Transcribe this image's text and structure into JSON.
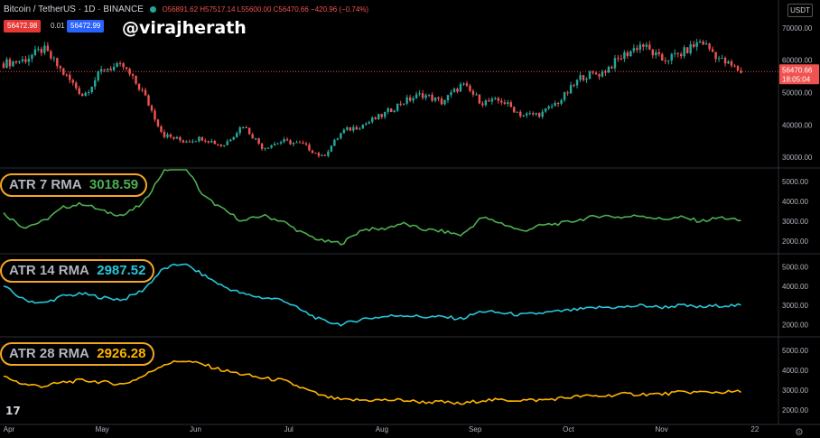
{
  "header": {
    "symbol": "Bitcoin / TetherUS · 1D · BINANCE",
    "ohlc": "O56891.62 H57517.14 L55600.00 C56470.66 −420.96 (−0.74%)",
    "sell_price": "56472.98",
    "spread": "0.01",
    "buy_price": "56472.99",
    "currency_button": "USDT"
  },
  "watermark": "@virajherath",
  "price_label": {
    "value": "56470.66",
    "countdown": "18:05:04"
  },
  "indicators": [
    {
      "name": "ATR 7 RMA",
      "value": "3018.59",
      "color": "#4caf50"
    },
    {
      "name": "ATR 14 RMA",
      "value": "2987.52",
      "color": "#26c6da"
    },
    {
      "name": "ATR 28 RMA",
      "value": "2926.28",
      "color": "#ffb300"
    }
  ],
  "colors": {
    "up": "#26a69a",
    "down": "#ef5350",
    "background": "#000000"
  },
  "icons": {
    "logo": "tradingview-logo-icon",
    "settings": "gear-icon"
  },
  "chart_data": [
    {
      "type": "candlestick",
      "title": "Bitcoin / TetherUS · 1D · BINANCE",
      "x_ticks": [
        "Apr",
        "May",
        "Jun",
        "Jul",
        "Aug",
        "Sep",
        "Oct",
        "Nov",
        "22"
      ],
      "y_ticks": [
        30000,
        40000,
        50000,
        60000,
        70000
      ],
      "ylim": [
        27000,
        73000
      ],
      "x": [
        "Apr 1",
        "Apr 10",
        "Apr 14",
        "Apr 20",
        "Apr 25",
        "May 1",
        "May 8",
        "May 12",
        "May 19",
        "May 25",
        "Jun 1",
        "Jun 8",
        "Jun 15",
        "Jun 22",
        "Jun 30",
        "Jul 8",
        "Jul 20",
        "Jul 26",
        "Aug 1",
        "Aug 7",
        "Aug 14",
        "Aug 23",
        "Aug 31",
        "Sep 6",
        "Sep 7",
        "Sep 14",
        "Sep 21",
        "Sep 28",
        "Oct 1",
        "Oct 6",
        "Oct 10",
        "Oct 16",
        "Oct 21",
        "Oct 27",
        "Nov 3",
        "Nov 10",
        "Nov 16",
        "Nov 20"
      ],
      "close": [
        59000,
        60000,
        63500,
        56000,
        49000,
        57500,
        58000,
        50000,
        37000,
        35000,
        36000,
        33500,
        40000,
        33000,
        35000,
        34000,
        30000,
        38000,
        40000,
        43000,
        47000,
        49500,
        47000,
        52500,
        47000,
        47500,
        43000,
        43500,
        48000,
        55000,
        56000,
        61000,
        65000,
        60000,
        62000,
        66000,
        60000,
        56470.66
      ]
    },
    {
      "type": "line",
      "series": [
        {
          "name": "ATR 7 RMA",
          "values": [
            3400,
            2700,
            3000,
            3700,
            3900,
            3500,
            3300,
            3900,
            5500,
            6000,
            4300,
            3600,
            3000,
            3300,
            3000,
            2400,
            2000,
            1900,
            2600,
            2600,
            2900,
            2600,
            2500,
            2300,
            3200,
            2900,
            2500,
            2800,
            2900,
            3100,
            3300,
            3200,
            3300,
            3100,
            3200,
            3000,
            3200,
            3018.59
          ]
        }
      ],
      "y_ticks": [
        2000,
        3000,
        4000,
        5000
      ],
      "ylim": [
        1500,
        5600
      ]
    },
    {
      "type": "line",
      "series": [
        {
          "name": "ATR 14 RMA",
          "values": [
            4000,
            3300,
            3100,
            3500,
            3600,
            3400,
            3300,
            3800,
            4900,
            5200,
            4600,
            4000,
            3600,
            3400,
            3300,
            2700,
            2200,
            2000,
            2300,
            2400,
            2500,
            2400,
            2400,
            2300,
            2700,
            2600,
            2500,
            2600,
            2700,
            2800,
            2900,
            2900,
            3000,
            2900,
            3000,
            2900,
            3000,
            2987.52
          ]
        }
      ],
      "y_ticks": [
        2000,
        3000,
        4000,
        5000
      ],
      "ylim": [
        1500,
        5600
      ]
    },
    {
      "type": "line",
      "series": [
        {
          "name": "ATR 28 RMA",
          "values": [
            3700,
            3300,
            3200,
            3400,
            3500,
            3400,
            3300,
            3700,
            4300,
            4500,
            4300,
            4000,
            3800,
            3600,
            3500,
            3100,
            2700,
            2500,
            2500,
            2500,
            2500,
            2400,
            2400,
            2300,
            2500,
            2500,
            2500,
            2500,
            2600,
            2700,
            2700,
            2800,
            2800,
            2800,
            2900,
            2900,
            2900,
            2926.28
          ]
        }
      ],
      "y_ticks": [
        2000,
        3000,
        4000,
        5000
      ],
      "ylim": [
        1500,
        5600
      ]
    }
  ]
}
